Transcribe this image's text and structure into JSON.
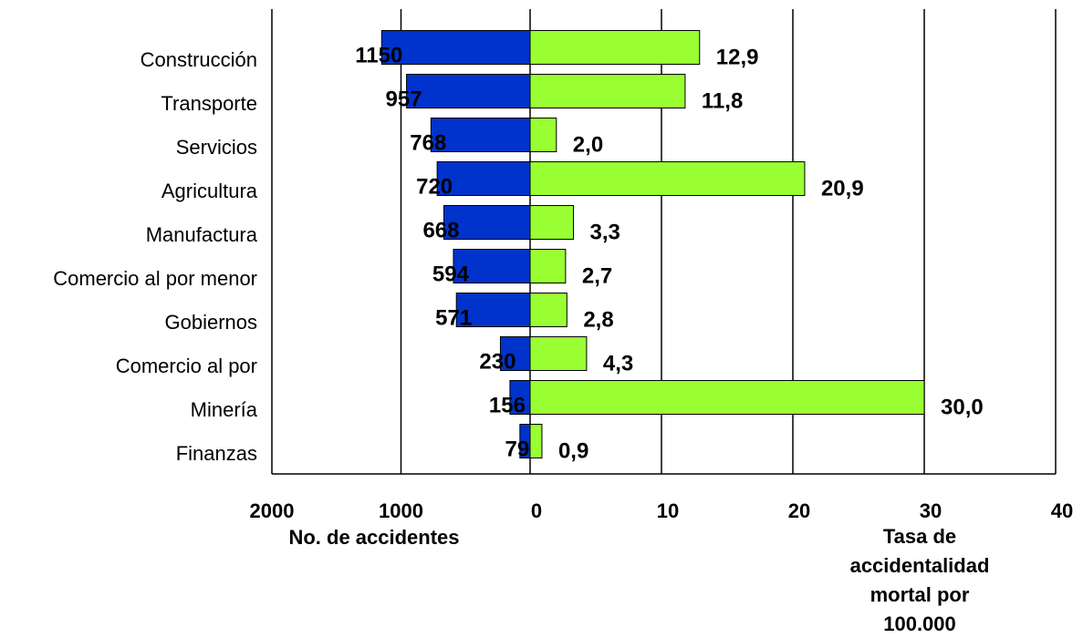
{
  "chart_data": {
    "type": "bar",
    "orientation": "diverging-horizontal",
    "categories": [
      "Construcción",
      "Transporte",
      "Servicios",
      "Agricultura",
      "Manufactura",
      "Comercio al por menor",
      "Gobiernos",
      "Comercio al por",
      "Minería",
      "Finanzas"
    ],
    "left": {
      "label": "No. de accidentes",
      "color": "#0033cc",
      "xlim": [
        0,
        2000
      ],
      "xticks": [
        2000,
        1000
      ],
      "values": [
        1150,
        957,
        768,
        720,
        668,
        594,
        571,
        230,
        156,
        79
      ]
    },
    "right": {
      "label": [
        "Tasa de",
        "accidentalidad",
        "mortal por",
        "100.000"
      ],
      "color": "#99ff33",
      "xlim": [
        0,
        40
      ],
      "xticks": [
        0,
        10,
        20,
        30,
        40
      ],
      "values": [
        12.9,
        11.8,
        2.0,
        20.9,
        3.3,
        2.7,
        2.8,
        4.3,
        30.0,
        0.9
      ],
      "value_labels": [
        "12,9",
        "11,8",
        "2,0",
        "20,9",
        "3,3",
        "2,7",
        "2,8",
        "4,3",
        "30,0",
        "0,9"
      ]
    },
    "grid": true
  }
}
